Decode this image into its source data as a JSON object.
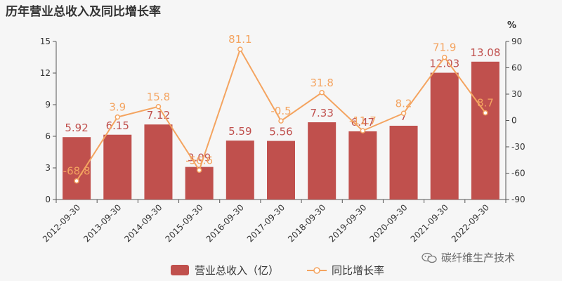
{
  "chart_data": {
    "type": "bar+line",
    "title": "历年营业总收入及同比增长率",
    "categories": [
      "2012-09-30",
      "2013-09-30",
      "2014-09-30",
      "2015-09-30",
      "2016-09-30",
      "2017-09-30",
      "2018-09-30",
      "2019-09-30",
      "2020-09-30",
      "2021-09-30",
      "2022-09-30"
    ],
    "bar_series": {
      "name": "营业总收入（亿）",
      "values": [
        5.92,
        6.15,
        7.12,
        3.09,
        5.59,
        5.56,
        7.33,
        6.47,
        7,
        12.03,
        13.08
      ],
      "labels": [
        "5.92",
        "6.15",
        "7.12",
        "3.09",
        "5.59",
        "5.56",
        "7.33",
        "6.47",
        "7",
        "12.03",
        "13.08"
      ]
    },
    "line_series": {
      "name": "同比增长率",
      "values": [
        -68.8,
        3.9,
        15.8,
        -56.6,
        81.1,
        -0.5,
        31.8,
        -11.7,
        8.2,
        71.9,
        8.7
      ],
      "labels": [
        "-68.8",
        "3.9",
        "15.8",
        "-56.6",
        "81.1",
        "-0.5",
        "31.8",
        "-11.7",
        "8.2",
        "71.9",
        "8.7"
      ]
    },
    "y_left": {
      "min": 0,
      "max": 15,
      "ticks": [
        0,
        3,
        6,
        9,
        12,
        15
      ]
    },
    "y_right": {
      "min": -90,
      "max": 90,
      "ticks": [
        -90,
        -60,
        -30,
        0,
        30,
        60,
        90
      ],
      "unit": "%"
    },
    "colors": {
      "bar": "#c0504d",
      "line": "#f4a460",
      "bar_label": "#c0504d",
      "line_label": "#f4a460"
    },
    "legend_position": "bottom-center",
    "grid": false
  },
  "watermark": {
    "text": "碳纤维生产技术",
    "icon": "wechat-icon"
  }
}
